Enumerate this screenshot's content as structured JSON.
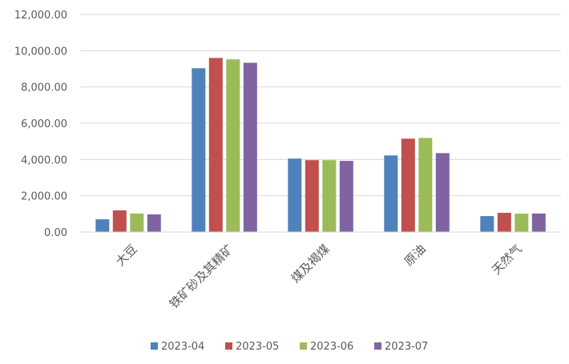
{
  "chart_data": {
    "type": "bar",
    "categories": [
      "大豆",
      "铁矿砂及其精矿",
      "煤及褐煤",
      "原油",
      "天然气"
    ],
    "series": [
      {
        "name": "2023-04",
        "color": "#4f81bd",
        "values": [
          700,
          9030,
          4050,
          4220,
          880
        ]
      },
      {
        "name": "2023-05",
        "color": "#c0504d",
        "values": [
          1190,
          9600,
          3960,
          5150,
          1060
        ]
      },
      {
        "name": "2023-06",
        "color": "#9bbb59",
        "values": [
          1020,
          9520,
          3960,
          5190,
          1010
        ]
      },
      {
        "name": "2023-07",
        "color": "#8064a2",
        "values": [
          970,
          9330,
          3920,
          4350,
          1020
        ]
      }
    ],
    "yticks": [
      "0.00",
      "2,000.00",
      "4,000.00",
      "6,000.00",
      "8,000.00",
      "10,000.00",
      "12,000.00"
    ],
    "ylim": [
      0,
      12000
    ],
    "grid": true,
    "legend_position": "bottom",
    "gridline_color": "#d9d9d9",
    "axis_color": "#d9d9d9"
  }
}
